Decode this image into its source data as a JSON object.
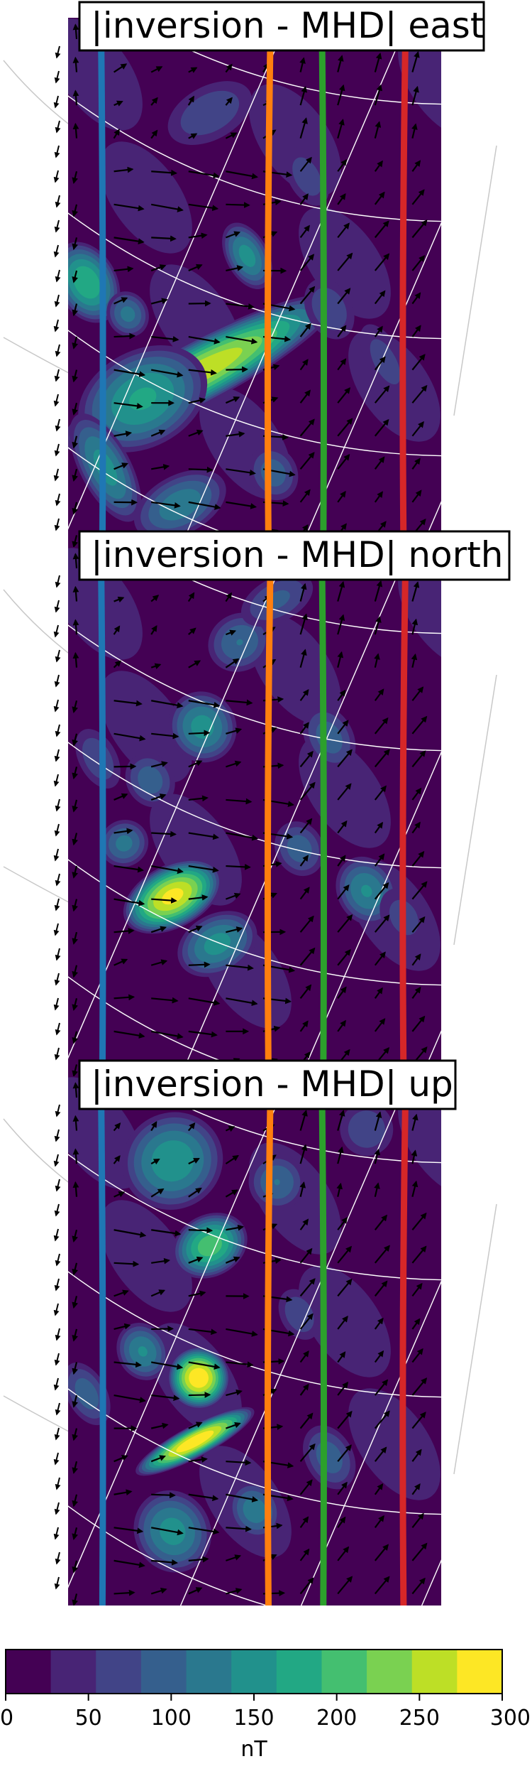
{
  "chart_data": {
    "type": "heatmap",
    "panels": [
      {
        "title": "|inversion - MHD| east",
        "blobs": [
          {
            "u": 0.35,
            "v": 0.67,
            "a": 0.35,
            "b": 0.05,
            "val": 270
          },
          {
            "u": 0.2,
            "v": 0.72,
            "a": 0.16,
            "b": 0.08,
            "val": 170
          },
          {
            "u": 0.05,
            "v": 0.5,
            "a": 0.07,
            "b": 0.07,
            "val": 190
          },
          {
            "u": 0.1,
            "v": 0.85,
            "a": 0.06,
            "b": 0.1,
            "val": 150
          },
          {
            "u": 0.3,
            "v": 0.92,
            "a": 0.12,
            "b": 0.05,
            "val": 130
          },
          {
            "u": 0.48,
            "v": 0.45,
            "a": 0.05,
            "b": 0.06,
            "val": 150
          },
          {
            "u": 0.55,
            "v": 0.86,
            "a": 0.06,
            "b": 0.05,
            "val": 100
          },
          {
            "u": 0.16,
            "v": 0.56,
            "a": 0.05,
            "b": 0.04,
            "val": 120
          },
          {
            "u": 0.85,
            "v": 0.65,
            "a": 0.05,
            "b": 0.08,
            "val": 70
          },
          {
            "u": 0.38,
            "v": 0.18,
            "a": 0.12,
            "b": 0.05,
            "val": 80
          },
          {
            "u": 0.7,
            "v": 0.55,
            "a": 0.06,
            "b": 0.06,
            "val": 80
          },
          {
            "u": 0.64,
            "v": 0.3,
            "a": 0.05,
            "b": 0.06,
            "val": 75
          }
        ]
      },
      {
        "title": "|inversion - MHD| north",
        "blobs": [
          {
            "u": 0.28,
            "v": 0.66,
            "a": 0.12,
            "b": 0.05,
            "val": 285
          },
          {
            "u": 0.36,
            "v": 0.34,
            "a": 0.08,
            "b": 0.06,
            "val": 150
          },
          {
            "u": 0.22,
            "v": 0.44,
            "a": 0.06,
            "b": 0.05,
            "val": 100
          },
          {
            "u": 0.15,
            "v": 0.56,
            "a": 0.06,
            "b": 0.04,
            "val": 120
          },
          {
            "u": 0.4,
            "v": 0.75,
            "a": 0.1,
            "b": 0.05,
            "val": 150
          },
          {
            "u": 0.46,
            "v": 0.18,
            "a": 0.08,
            "b": 0.05,
            "val": 110
          },
          {
            "u": 0.56,
            "v": 0.1,
            "a": 0.1,
            "b": 0.04,
            "val": 90
          },
          {
            "u": 0.7,
            "v": 0.36,
            "a": 0.06,
            "b": 0.06,
            "val": 100
          },
          {
            "u": 0.8,
            "v": 0.65,
            "a": 0.07,
            "b": 0.06,
            "val": 140
          },
          {
            "u": 0.62,
            "v": 0.57,
            "a": 0.06,
            "b": 0.05,
            "val": 100
          },
          {
            "u": 0.08,
            "v": 0.4,
            "a": 0.05,
            "b": 0.06,
            "val": 80
          },
          {
            "u": 0.9,
            "v": 0.7,
            "a": 0.06,
            "b": 0.06,
            "val": 70
          }
        ]
      },
      {
        "title": "|inversion - MHD| up",
        "blobs": [
          {
            "u": 0.35,
            "v": 0.57,
            "a": 0.07,
            "b": 0.05,
            "val": 300
          },
          {
            "u": 0.34,
            "v": 0.69,
            "a": 0.15,
            "b": 0.025,
            "val": 300
          },
          {
            "u": 0.28,
            "v": 0.16,
            "a": 0.12,
            "b": 0.08,
            "val": 160
          },
          {
            "u": 0.38,
            "v": 0.32,
            "a": 0.09,
            "b": 0.05,
            "val": 210
          },
          {
            "u": 0.2,
            "v": 0.52,
            "a": 0.06,
            "b": 0.05,
            "val": 140
          },
          {
            "u": 0.28,
            "v": 0.86,
            "a": 0.09,
            "b": 0.07,
            "val": 150
          },
          {
            "u": 0.5,
            "v": 0.82,
            "a": 0.06,
            "b": 0.05,
            "val": 130
          },
          {
            "u": 0.56,
            "v": 0.2,
            "a": 0.07,
            "b": 0.05,
            "val": 110
          },
          {
            "u": 0.8,
            "v": 0.1,
            "a": 0.07,
            "b": 0.05,
            "val": 80
          },
          {
            "u": 0.7,
            "v": 0.72,
            "a": 0.06,
            "b": 0.06,
            "val": 100
          },
          {
            "u": 0.05,
            "v": 0.6,
            "a": 0.05,
            "b": 0.06,
            "val": 100
          },
          {
            "u": 0.62,
            "v": 0.45,
            "a": 0.05,
            "b": 0.05,
            "val": 80
          }
        ]
      }
    ],
    "colorbar": {
      "label": "nT",
      "range": [
        0,
        300
      ],
      "levels": [
        0,
        27.3,
        54.5,
        81.8,
        109.1,
        136.4,
        163.6,
        190.9,
        218.2,
        245.5,
        272.7,
        300
      ],
      "colors": [
        "#440154",
        "#482475",
        "#414487",
        "#355f8d",
        "#2a788e",
        "#21918c",
        "#22a884",
        "#44bf70",
        "#7ad151",
        "#bddf26",
        "#fde725"
      ],
      "ticks": [
        "0",
        "50",
        "100",
        "150",
        "200",
        "250",
        "300"
      ]
    },
    "vertical_lines": [
      {
        "name": "",
        "color": "#1f77b4"
      },
      {
        "name": "",
        "color": "#ff7f0e"
      },
      {
        "name": "",
        "color": "#2ca02c"
      },
      {
        "name": "",
        "color": "#d62728"
      }
    ],
    "grid": true
  }
}
